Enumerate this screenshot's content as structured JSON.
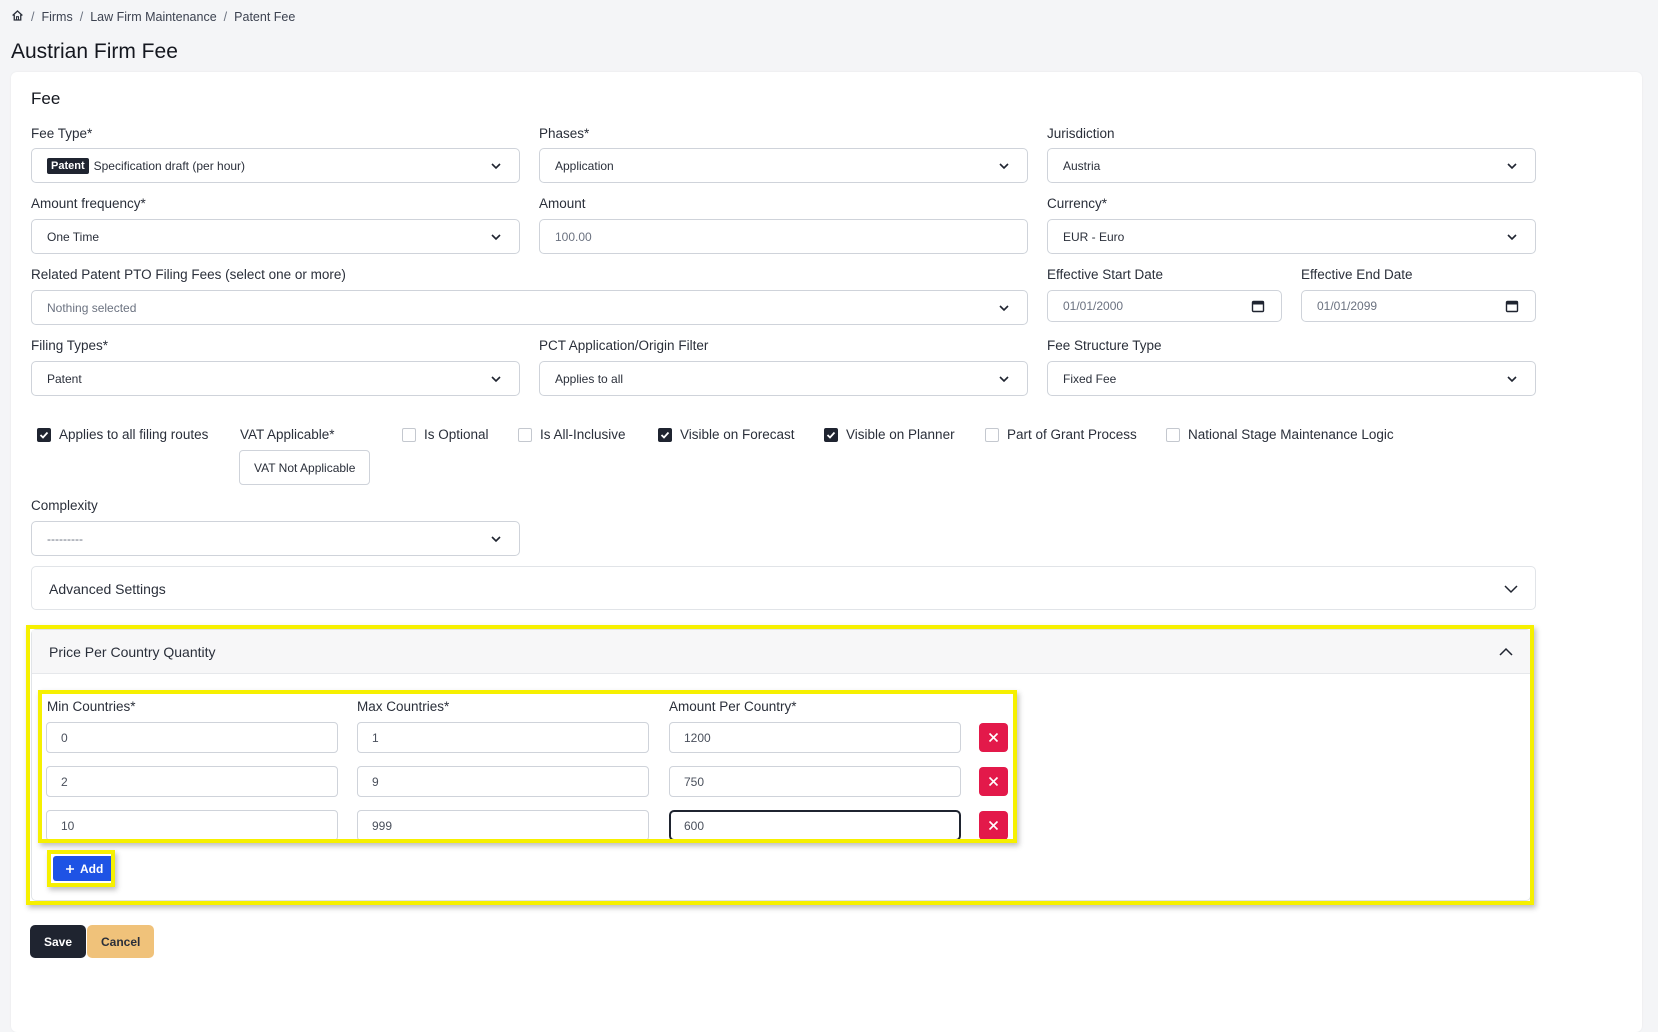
{
  "breadcrumb": {
    "items": [
      "Firms",
      "Law Firm Maintenance",
      "Patent Fee"
    ]
  },
  "page": {
    "title": "Austrian Firm Fee"
  },
  "fee_card": {
    "title": "Fee",
    "fee_type": {
      "label": "Fee Type*",
      "tag": "Patent",
      "value": "Specification draft (per hour)"
    },
    "phases": {
      "label": "Phases*",
      "value": "Application"
    },
    "jurisdiction": {
      "label": "Jurisdiction",
      "value": "Austria"
    },
    "amount_frequency": {
      "label": "Amount frequency*",
      "value": "One Time"
    },
    "amount": {
      "label": "Amount",
      "value": "100.00"
    },
    "currency": {
      "label": "Currency*",
      "value": "EUR - Euro"
    },
    "related_fees": {
      "label": "Related Patent PTO Filing Fees (select one or more)",
      "value": "Nothing selected"
    },
    "start_date": {
      "label": "Effective Start Date",
      "value": "01/01/2000"
    },
    "end_date": {
      "label": "Effective End Date",
      "value": "01/01/2099"
    },
    "filing_types": {
      "label": "Filing Types*",
      "value": "Patent"
    },
    "pct_filter": {
      "label": "PCT Application/Origin Filter",
      "value": "Applies to all"
    },
    "fee_structure": {
      "label": "Fee Structure Type",
      "value": "Fixed Fee"
    },
    "checkboxes": {
      "applies_all_routes": {
        "label": "Applies to all filing routes",
        "checked": true
      },
      "is_optional": {
        "label": "Is Optional",
        "checked": false
      },
      "is_all_inclusive": {
        "label": "Is All-Inclusive",
        "checked": false
      },
      "visible_forecast": {
        "label": "Visible on Forecast",
        "checked": true
      },
      "visible_planner": {
        "label": "Visible on Planner",
        "checked": true
      },
      "part_grant": {
        "label": "Part of Grant Process",
        "checked": false
      },
      "national_stage": {
        "label": "National Stage Maintenance Logic",
        "checked": false
      }
    },
    "vat": {
      "label": "VAT Applicable*",
      "value": "VAT Not Applicable"
    },
    "complexity": {
      "label": "Complexity",
      "value": "---------"
    },
    "advanced": {
      "label": "Advanced Settings"
    },
    "price_per_country": {
      "title": "Price Per Country Quantity",
      "headers": {
        "min": "Min Countries*",
        "max": "Max Countries*",
        "amount": "Amount Per Country*"
      },
      "rows": [
        {
          "min": "0",
          "max": "1",
          "amount": "1200"
        },
        {
          "min": "2",
          "max": "9",
          "amount": "750"
        },
        {
          "min": "10",
          "max": "999",
          "amount": "600"
        }
      ],
      "add_label": "Add"
    }
  },
  "actions": {
    "save": "Save",
    "cancel": "Cancel"
  },
  "colors": {
    "highlight": "#f6f000",
    "delete": "#e3194a",
    "add": "#1e53e5",
    "save": "#1f2430",
    "cancel": "#f0c27a"
  }
}
